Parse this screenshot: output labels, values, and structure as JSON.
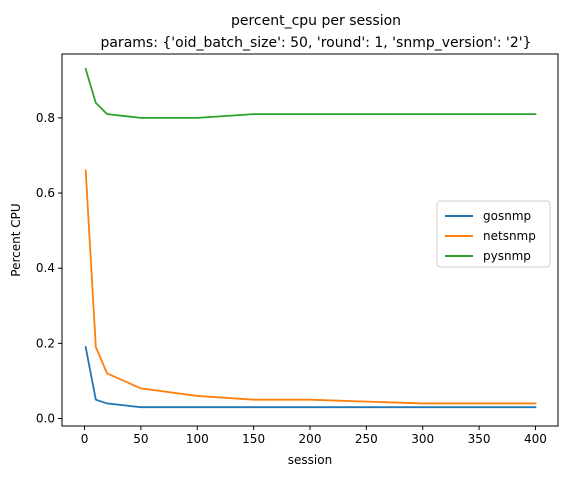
{
  "chart_data": {
    "type": "line",
    "title": "percent_cpu per session",
    "subtitle": "params: {'oid_batch_size': 50, 'round': 1, 'snmp_version': '2'}",
    "xlabel": "session",
    "ylabel": "Percent CPU",
    "xlim": [
      -20,
      420
    ],
    "ylim": [
      -0.02,
      0.97
    ],
    "xticks": [
      0,
      50,
      100,
      150,
      200,
      250,
      300,
      350,
      400
    ],
    "yticks": [
      0.0,
      0.2,
      0.4,
      0.6,
      0.8
    ],
    "ytick_labels": [
      "0.0",
      "0.2",
      "0.4",
      "0.6",
      "0.8"
    ],
    "grid": false,
    "legend_position": "center-right",
    "series": [
      {
        "name": "gosnmp",
        "color": "#1f77b4",
        "x": [
          1,
          10,
          20,
          50,
          100,
          150,
          200,
          300,
          400
        ],
        "y": [
          0.19,
          0.05,
          0.04,
          0.03,
          0.03,
          0.03,
          0.03,
          0.03,
          0.03
        ]
      },
      {
        "name": "netsnmp",
        "color": "#ff7f0e",
        "x": [
          1,
          10,
          20,
          50,
          100,
          150,
          200,
          300,
          400
        ],
        "y": [
          0.66,
          0.19,
          0.12,
          0.08,
          0.06,
          0.05,
          0.05,
          0.04,
          0.04
        ]
      },
      {
        "name": "pysnmp",
        "color": "#2ca02c",
        "x": [
          1,
          10,
          20,
          50,
          100,
          150,
          200,
          300,
          400
        ],
        "y": [
          0.93,
          0.84,
          0.81,
          0.8,
          0.8,
          0.81,
          0.81,
          0.81,
          0.81
        ]
      }
    ]
  }
}
